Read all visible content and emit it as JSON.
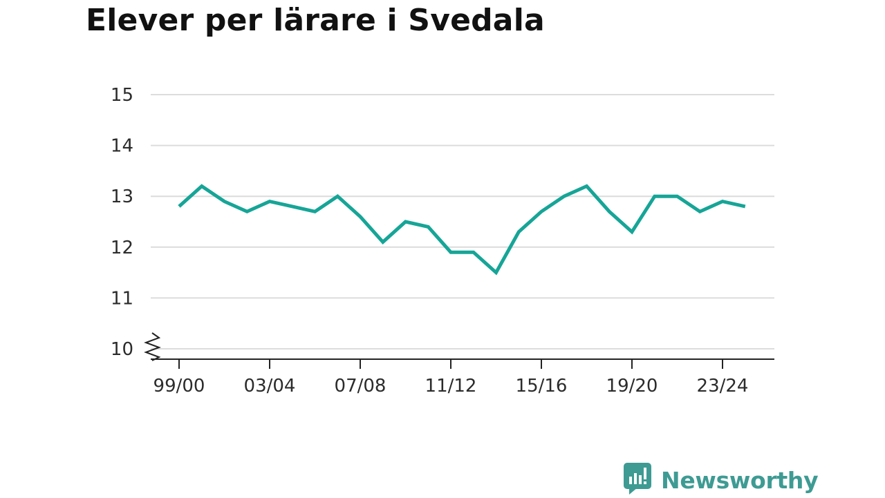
{
  "header": {
    "title": "Elever per lärare i Svedala"
  },
  "brand": {
    "name": "Newsworthy",
    "icon": "newsworthy-chart-logo-icon",
    "color": "#3e9b93"
  },
  "chart_data": {
    "type": "line",
    "title": "Elever per lärare i Svedala",
    "xlabel": "",
    "ylabel": "",
    "ylim": [
      10,
      15
    ],
    "y_ticks": [
      10,
      11,
      12,
      13,
      14,
      15
    ],
    "y_axis_break": true,
    "grid": true,
    "x_tick_labels": [
      "99/00",
      "03/04",
      "07/08",
      "11/12",
      "15/16",
      "19/20",
      "23/24"
    ],
    "x_tick_indices": [
      0,
      4,
      8,
      12,
      16,
      20,
      24
    ],
    "line_color": "#16a597",
    "series": [
      {
        "x": [
          "99/00",
          "00/01",
          "01/02",
          "02/03",
          "03/04",
          "04/05",
          "05/06",
          "06/07",
          "07/08",
          "08/09",
          "09/10",
          "10/11",
          "11/12",
          "12/13",
          "13/14",
          "14/15",
          "15/16",
          "16/17",
          "17/18",
          "18/19",
          "19/20",
          "20/21",
          "21/22",
          "22/23",
          "23/24",
          "24/25"
        ],
        "values": [
          12.8,
          13.2,
          12.9,
          12.7,
          12.9,
          12.8,
          12.7,
          13.0,
          12.6,
          12.1,
          12.5,
          12.4,
          11.9,
          11.9,
          11.5,
          12.3,
          12.7,
          13.0,
          13.2,
          12.7,
          12.3,
          13.0,
          13.0,
          12.7,
          12.9,
          12.8
        ]
      }
    ]
  }
}
